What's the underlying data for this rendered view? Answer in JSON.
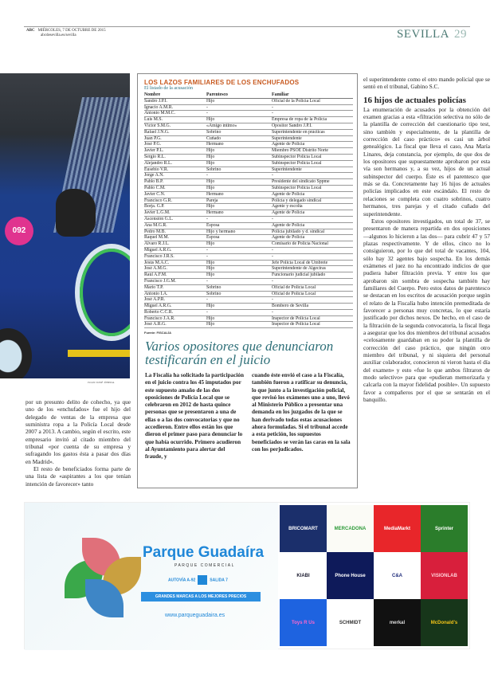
{
  "header": {
    "brand": "ABC",
    "date": "MIÉRCOLES, 7 DE OCTUBRE DE 2015",
    "url": "abcdesevilla.es/sevilla",
    "section": "SEVILLA",
    "page": "29"
  },
  "photo": {
    "badge": "092",
    "credit": "JUAN JOSÉ ÚBEDA"
  },
  "table": {
    "title": "LOS LAZOS FAMILIARES DE LOS ENCHUFADOS",
    "subtitle": "El listado de la acusación",
    "headers": [
      "Nombre",
      "Parentesco",
      "Familiar"
    ],
    "rows": [
      [
        "Sandro J.P.I.",
        "Hijo",
        "Oficial de la Policía Local"
      ],
      [
        "Ignacio A.M.R.",
        "-",
        "-"
      ],
      [
        "Antonio M.M.C.",
        "-",
        "-"
      ],
      [
        "Luis M.S.",
        "Hijo",
        "Empresa de ropa de la Policía"
      ],
      [
        "Víctor S.M.G.",
        "«Amigo íntimo»",
        "Opositor Sandro J.P.I."
      ],
      [
        "Rafael J.N.G.",
        "Sobrino",
        "Superintendente en prácticas"
      ],
      [
        "Juan P.G.",
        "Cuñado",
        "Superintendente"
      ],
      [
        "José P.G.",
        "Hermano",
        "Agente de Policía"
      ],
      [
        "Javier P.L.",
        "Hijo",
        "Miembro PSOE Distrito Norte"
      ],
      [
        "Sergio R.L.",
        "Hijo",
        "Subinspector Policía Local"
      ],
      [
        "Alejandro R.L.",
        "Hijo",
        "Subinspector Policía Local"
      ],
      [
        "Eusebio V.R.",
        "Sobrino",
        "Superintendente"
      ],
      [
        "Jorge A.N.",
        "-",
        "-"
      ],
      [
        "Pablo B.P.",
        "Hijo",
        "Presidente del sindicato Sppme"
      ],
      [
        "Pablo C.M.",
        "Hijo",
        "Subinspector Policía Local"
      ],
      [
        "Javier C.N.",
        "Hermano",
        "Agente de Policía"
      ],
      [
        "Francisco G.R.",
        "Pareja",
        "Policía y delegado sindical"
      ],
      [
        "Borja. G.P.",
        "Hijo",
        "Agente y escolta"
      ],
      [
        "Javier L.G.M.",
        "Hermano",
        "Agente de Policía"
      ],
      [
        "Ascensión G.L.",
        "-",
        "-"
      ],
      [
        "Ana M.G.R.",
        "Esposa",
        "Agente de Policía"
      ],
      [
        "Pedro M.B.",
        "Hijo y hermano",
        "Policía jubilado y d. sindical"
      ],
      [
        "Raquel M.M.",
        "Esposa",
        "Agente de Policía"
      ],
      [
        "Álvaro R.J.L.",
        "Hijo",
        "Comisario de Policía Nacional"
      ],
      [
        "Miguel A.R.G.",
        "-",
        "-"
      ],
      [
        "Francisco J.R.S.",
        "-",
        "-"
      ],
      [
        "Jesús M.A.C.",
        "Hijo",
        "Jefe Policía Local de Umbrete"
      ],
      [
        "José A.M.G.",
        "Hijo",
        "Superintendente de Algeciras"
      ],
      [
        "Raúl A.F.M.",
        "Hijo",
        "Funcionario judicial jubilado"
      ],
      [
        "Francisco J.G.M.",
        "-",
        "-"
      ],
      [
        "Mario T.P.",
        "Sobrino",
        "Oficial de Policía Local"
      ],
      [
        "Antonio I.A.",
        "Sobrino",
        "Oficial de Policía Local"
      ],
      [
        "José A.P.R.",
        "-",
        "-"
      ],
      [
        "Miguel A.R.G.",
        "Hijo",
        "Bombero de Sevilla"
      ],
      [
        "Roberto C.C.R.",
        "-",
        "-"
      ],
      [
        "Francisco J.A.R.",
        "Hijo",
        "Inspector de Policía Local"
      ],
      [
        "José A.R.G.",
        "Hijo",
        "Inspector de Policía Local"
      ]
    ],
    "source": "Fuente: FISCALÍA"
  },
  "sidebar_article": {
    "headline": "Varios opositores que denunciaron testificarán en el juicio",
    "col1": "La Fiscalía ha solicitado la participación en el juicio contra los 45 imputados por este supuesto amaño de las dos oposiciones de Policía Local que se celebraron en 2012 de hasta quince personas que se presentaron a una de ellas o a las dos convocatorias y que no accedieron. Entre ellos están los que dieron el primer paso para denunciar lo que había ocurrido. Primero acudieron al Ayuntamiento para alertar del fraude, y",
    "col2": "cuando éste envió el caso a la Fiscalía, también fueron a ratificar su denuncia, lo que junto a la investigación policial, que revisó los exámenes uno a uno, llevó al Ministerio Público a presentar una demanda en los juzgados de la que se han derivado todas estas acusaciones ahora formuladas. Si el tribunal accede a esta petición, los supuestos beneficiados se verán las caras en la sala con los perjudicados."
  },
  "left_column": {
    "p1": "por un presunto delito de cohecho, ya que uno de los «enchufados» fue el hijo del delegado de ventas de la empresa que suministra ropa a la Policía Local desde 2007 a 2013. A cambio, según el escrito, este empresario invitó al citado miembro del tribunal «por cuenta de su empresa y sufragando los gastos ésta a pasar dos días en Madrid».",
    "p2": "El resto de beneficiados forma parte de una lista de «aspirantes a los que tenían intención de favorecer» tanto"
  },
  "right_column": {
    "p1": "el superintendente como el otro mando policial que se sentó en el tribunal, Gabino S.C.",
    "subhead": "16 hijos de actuales policías",
    "p2": "La enumeración de acusados por la obtención del examen gracias a esta «filtración selectiva no sólo de la plantilla de corrección del cuestionario tipo test, sino también y especialmente, de la plantilla de corrección del caso práctico» es casi un árbol genealógico. La fiscal que lleva el caso, Ana María Linares, deja constancia, por ejemplo, de que dos de los opositores que supuestamente aprobaron por esta vía son hermanos y, a su vez, hijos de un actual subinspector del cuerpo. Éste es el parentesco que más se da. Concretamente hay 16 hijos de actuales policías implicados en este escándalo. El resto de relaciones se completa con cuatro sobrinos, cuatro hermanos, tres parejas y el citado cuñado del superintendente.",
    "p3": "Estos opositores investigados, un total de 37, se presentaron de manera repartida en dos oposiciones —algunos lo hicieron a las dos— para cubrir 47 y 57 plazas respectivamente. Y de ellos, cinco no lo consiguieron, por lo que del total de vacantes, 104, sólo hay 32 agentes bajo sospecha. En los demás exámenes el juez no ha encontrado indicios de que pudiera haber filtración previa. Y entre los que aprobaron sin sombra de sospecha también hay familiares del Cuerpo. Pero estos datos de parentesco se destacan en los escritos de acusación porque según el relato de la Fiscalía hubo intención premeditada de favorecer a personas muy concretas, lo que estaría justificado por dichos nexos. De hecho, en el caso de la filtración de la segunda convocatoria, la fiscal llega a asegurar que los dos miembros del tribunal acusados «celosamente guardaban en su poder la plantilla de corrección del caso práctico, que ningún otro miembro del tribunal, y ni siquiera del personal auxiliar colaborador, conocieron ni vieron hasta el día del examen» y esto «fue lo que ambos filtraron de modo selectivo» para que «pudieran memorizarla y calcarla con la mayor fidelidad posible». Un supuesto favor a compañeros por el que se sentarán en el banquillo."
  },
  "ad": {
    "title": "Parque Guadaíra",
    "subtitle": "PARQUE COMERCIAL",
    "road": "AUTOVÍA A-92",
    "exit": "SALIDA 7",
    "banner": "GRANDES MARCAS A LOS MEJORES PRECIOS",
    "url": "www.parqueguadaira.es",
    "brands": [
      {
        "name": "BRICOMART",
        "bg": "#1b2f6b",
        "fg": "#ffffff"
      },
      {
        "name": "MERCADONA",
        "bg": "#fbfbf6",
        "fg": "#2e9b3a"
      },
      {
        "name": "MediaMarkt",
        "bg": "#e8262a",
        "fg": "#ffffff"
      },
      {
        "name": "Sprinter",
        "bg": "#2b7d2b",
        "fg": "#ffffff"
      },
      {
        "name": "KIABI",
        "bg": "#ffffff",
        "fg": "#1a1a2e"
      },
      {
        "name": "Phone House",
        "bg": "#0e1a5a",
        "fg": "#ffffff"
      },
      {
        "name": "C&A",
        "bg": "#ffffff",
        "fg": "#1d2a7a"
      },
      {
        "name": "VISIONLAB",
        "bg": "#d81f3c",
        "fg": "#ffd0d8"
      },
      {
        "name": "Toys R Us",
        "bg": "#1e63e0",
        "fg": "#ff66cc"
      },
      {
        "name": "SCHMIDT",
        "bg": "#ffffff",
        "fg": "#333333"
      },
      {
        "name": "merkal",
        "bg": "#111111",
        "fg": "#dddddd"
      },
      {
        "name": "McDonald's",
        "bg": "#17361a",
        "fg": "#f2c318"
      }
    ]
  }
}
